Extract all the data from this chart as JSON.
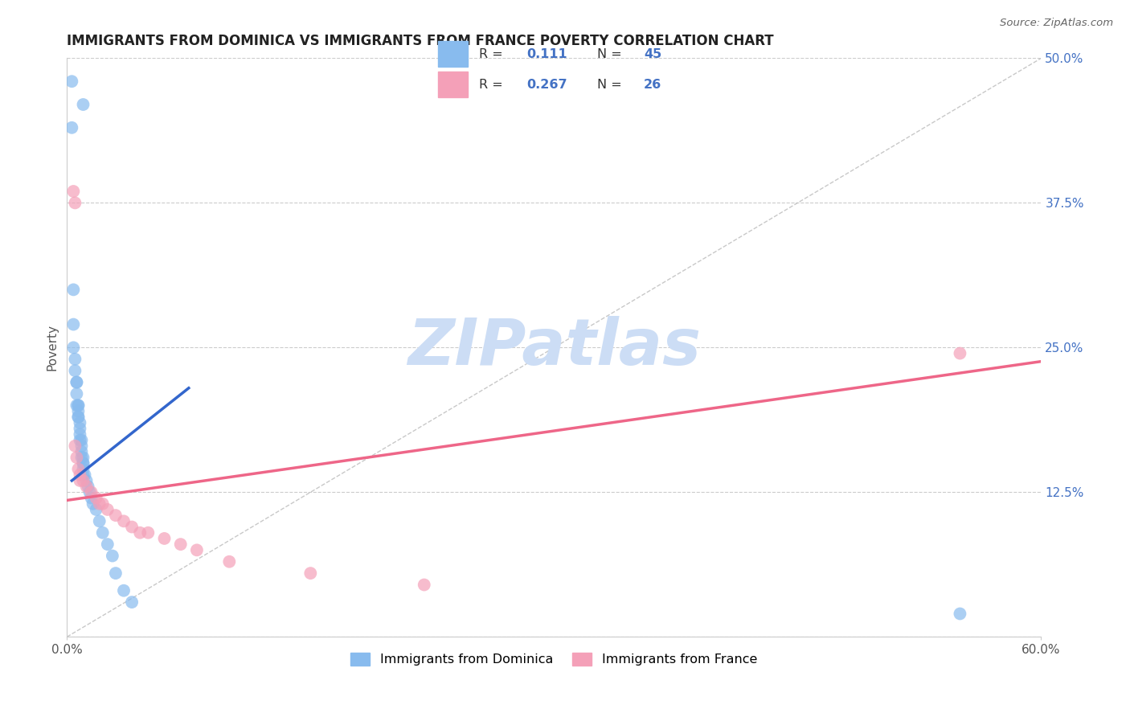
{
  "title": "IMMIGRANTS FROM DOMINICA VS IMMIGRANTS FROM FRANCE POVERTY CORRELATION CHART",
  "source": "Source: ZipAtlas.com",
  "ylabel": "Poverty",
  "xlim": [
    0.0,
    0.6
  ],
  "ylim": [
    0.0,
    0.5
  ],
  "xtick_vals": [
    0.0,
    0.6
  ],
  "xtick_labels": [
    "0.0%",
    "60.0%"
  ],
  "ytick_vals": [
    0.0,
    0.125,
    0.25,
    0.375,
    0.5
  ],
  "ytick_labels": [
    "",
    "12.5%",
    "25.0%",
    "37.5%",
    "50.0%"
  ],
  "dominica_r": 0.111,
  "dominica_n": 45,
  "france_r": 0.267,
  "france_n": 26,
  "blue_color": "#88bbee",
  "pink_color": "#f4a0b8",
  "blue_line_color": "#3366cc",
  "pink_line_color": "#ee6688",
  "ref_line_color": "#bbbbbb",
  "grid_color": "#cccccc",
  "ytick_color": "#4472c4",
  "title_color": "#222222",
  "ylabel_color": "#555555",
  "watermark_color": "#ccddf5",
  "dominica_x": [
    0.003,
    0.01,
    0.003,
    0.004,
    0.004,
    0.004,
    0.005,
    0.005,
    0.006,
    0.006,
    0.006,
    0.006,
    0.007,
    0.007,
    0.007,
    0.007,
    0.007,
    0.008,
    0.008,
    0.008,
    0.008,
    0.009,
    0.009,
    0.009,
    0.009,
    0.01,
    0.01,
    0.01,
    0.01,
    0.01,
    0.011,
    0.012,
    0.013,
    0.014,
    0.015,
    0.016,
    0.018,
    0.02,
    0.022,
    0.025,
    0.028,
    0.03,
    0.035,
    0.04,
    0.55
  ],
  "dominica_y": [
    0.48,
    0.46,
    0.44,
    0.3,
    0.27,
    0.25,
    0.24,
    0.23,
    0.22,
    0.22,
    0.21,
    0.2,
    0.2,
    0.2,
    0.195,
    0.19,
    0.19,
    0.185,
    0.18,
    0.175,
    0.17,
    0.17,
    0.165,
    0.16,
    0.155,
    0.155,
    0.15,
    0.15,
    0.145,
    0.14,
    0.14,
    0.135,
    0.13,
    0.125,
    0.12,
    0.115,
    0.11,
    0.1,
    0.09,
    0.08,
    0.07,
    0.055,
    0.04,
    0.03,
    0.02
  ],
  "france_x": [
    0.004,
    0.005,
    0.005,
    0.006,
    0.007,
    0.008,
    0.008,
    0.01,
    0.012,
    0.015,
    0.018,
    0.02,
    0.022,
    0.025,
    0.03,
    0.035,
    0.04,
    0.045,
    0.05,
    0.06,
    0.07,
    0.08,
    0.1,
    0.15,
    0.22,
    0.55
  ],
  "france_y": [
    0.385,
    0.375,
    0.165,
    0.155,
    0.145,
    0.14,
    0.135,
    0.135,
    0.13,
    0.125,
    0.12,
    0.115,
    0.115,
    0.11,
    0.105,
    0.1,
    0.095,
    0.09,
    0.09,
    0.085,
    0.08,
    0.075,
    0.065,
    0.055,
    0.045,
    0.245
  ],
  "blue_trend_x": [
    0.003,
    0.075
  ],
  "blue_trend_y": [
    0.135,
    0.215
  ],
  "pink_trend_x": [
    0.0,
    0.6
  ],
  "pink_trend_y": [
    0.118,
    0.238
  ],
  "ref_line_x": [
    0.0,
    0.6
  ],
  "ref_line_y": [
    0.0,
    0.5
  ],
  "watermark": "ZIPatlas",
  "background_color": "#ffffff"
}
